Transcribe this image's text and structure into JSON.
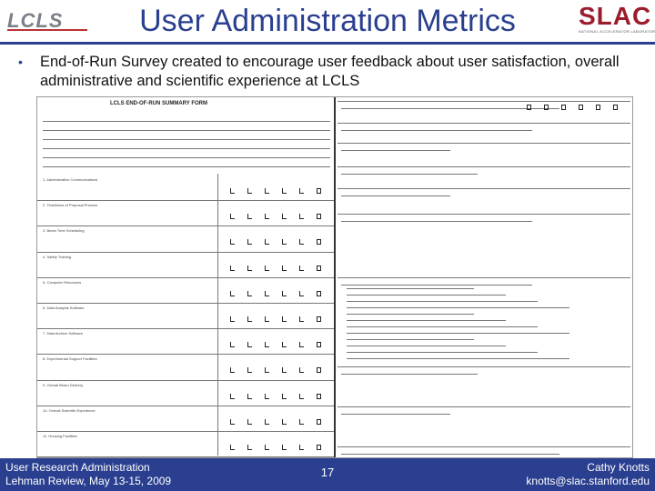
{
  "header": {
    "lcls_logo": "LCLS",
    "title": "User Administration Metrics",
    "slac_logo": "SLAC",
    "slac_sub": "NATIONAL ACCELERATOR LABORATORY"
  },
  "bullet": {
    "text": "End-of-Run Survey created to encourage user feedback about user satisfaction, overall administrative and scientific experience at LCLS"
  },
  "form": {
    "title": "LCLS END-OF-RUN SUMMARY FORM",
    "left_items": [
      "1. Administrative Communications",
      "2. Timeliness of Proposal Process",
      "3. Beam Time Scheduling",
      "4. Safety Training",
      "5. Computer Resources",
      "6. Data Analysis Software",
      "7. Data Archive Software",
      "8. Experimental Support Facilities",
      "9. Overall Beam Delivery",
      "10. Overall Scientific Experience",
      "11. Housing Facilities"
    ]
  },
  "footer": {
    "left_line1": "User Research Administration",
    "left_line2": "Lehman Review, May 13-15, 2009",
    "page_number": "17",
    "right_line1": "Cathy Knotts",
    "right_line2": "knotts@slac.stanford.edu"
  }
}
